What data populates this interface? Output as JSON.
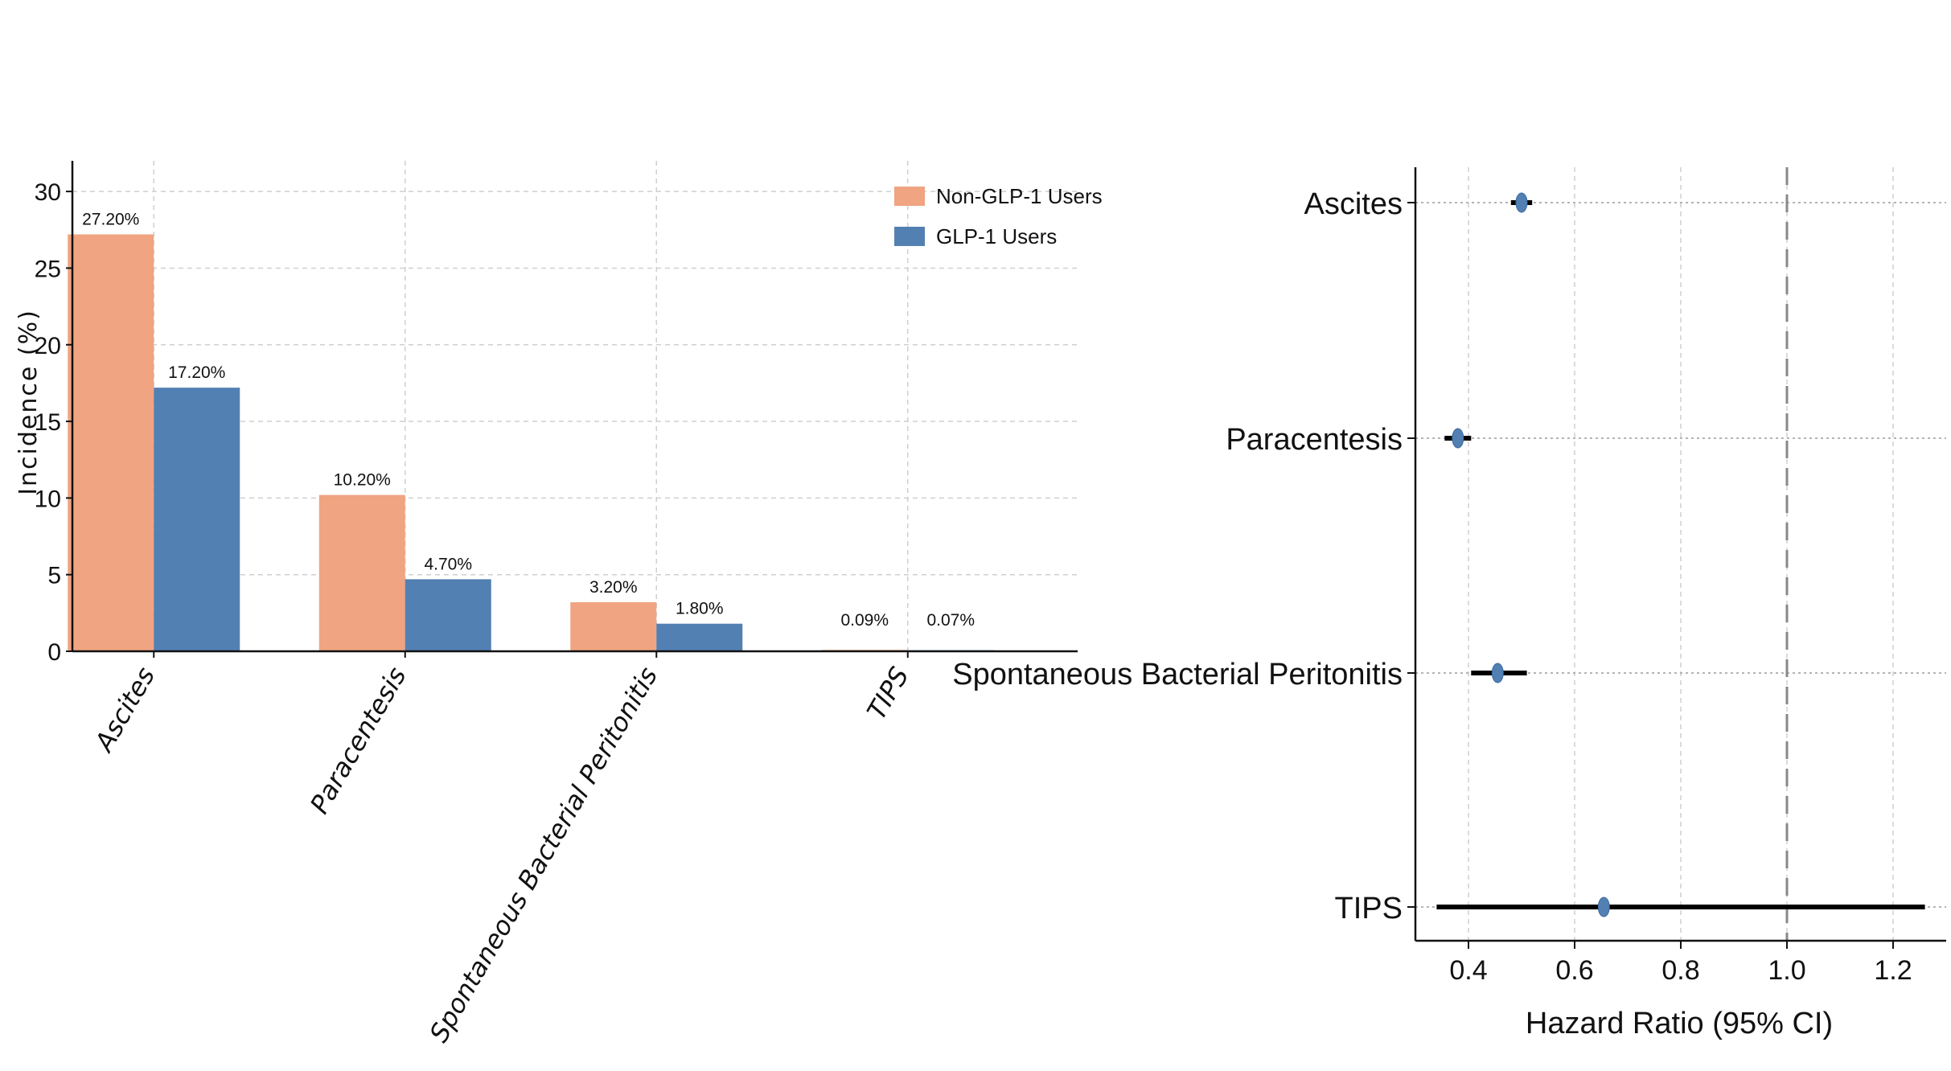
{
  "chart_data": [
    {
      "type": "bar",
      "categories": [
        "Ascites",
        "Paracentesis",
        "Spontaneous Bacterial Peritonitis",
        "TIPS"
      ],
      "series": [
        {
          "name": "Non-GLP-1 Users",
          "values": [
            27.2,
            10.2,
            3.2,
            0.09
          ],
          "labels": [
            "27.20%",
            "10.20%",
            "3.20%",
            "0.09%"
          ]
        },
        {
          "name": "GLP-1 Users",
          "values": [
            17.2,
            4.7,
            1.8,
            0.07
          ],
          "labels": [
            "17.20%",
            "4.70%",
            "1.80%",
            "0.07%"
          ]
        }
      ],
      "colors": [
        "#f0a481",
        "#5380b2"
      ],
      "ylabel": "Incidence (%)",
      "ylim": [
        0,
        32
      ],
      "yticks": [
        0,
        5,
        10,
        15,
        20,
        25,
        30
      ],
      "grid": true,
      "legend": "top-right"
    },
    {
      "type": "scatter",
      "subtype": "forest",
      "categories": [
        "Ascites",
        "Paracentesis",
        "Spontaneous Bacterial Peritonitis",
        "TIPS"
      ],
      "hr": [
        0.5,
        0.38,
        0.455,
        0.655
      ],
      "ci_low": [
        0.48,
        0.355,
        0.405,
        0.34
      ],
      "ci_high": [
        0.52,
        0.405,
        0.51,
        1.26
      ],
      "xlabel": "Hazard Ratio (95% CI)",
      "xlim": [
        0.3,
        1.3
      ],
      "xticks": [
        "0.4",
        "0.6",
        "0.8",
        "1.0",
        "1.2"
      ],
      "reference_line": 1.0,
      "marker_color": "#5380b2",
      "grid": true
    }
  ]
}
